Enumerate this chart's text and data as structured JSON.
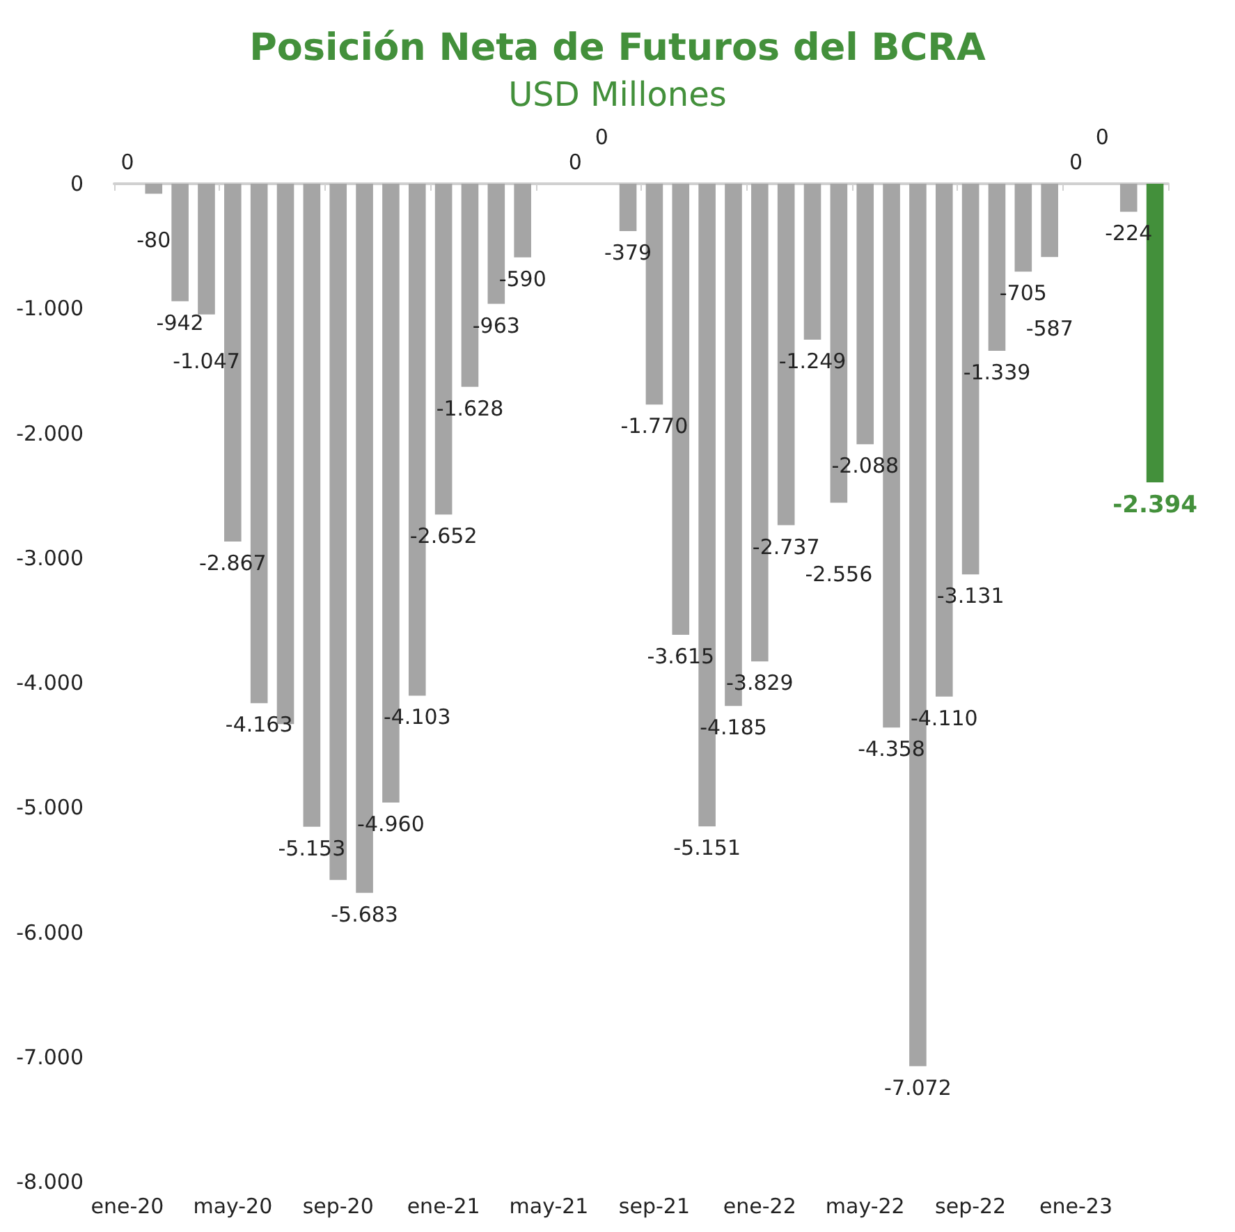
{
  "chart_data": {
    "type": "bar",
    "title": "Posición Neta de Futuros del BCRA",
    "subtitle": "USD Millones",
    "categories": [
      "ene-20",
      null,
      null,
      null,
      "may-20",
      null,
      null,
      null,
      "sep-20",
      null,
      null,
      null,
      "ene-21",
      null,
      null,
      null,
      "may-21",
      null,
      null,
      null,
      "sep-21",
      null,
      null,
      null,
      "ene-22",
      null,
      null,
      null,
      "may-22",
      null,
      null,
      null,
      "sep-22",
      null,
      null,
      null,
      "ene-23",
      null,
      null,
      null
    ],
    "values": [
      0,
      -80,
      -942,
      -1047,
      -2867,
      -4163,
      -4330,
      -5153,
      -5580,
      -5683,
      -4960,
      -4103,
      -2652,
      -1628,
      -963,
      -590,
      null,
      0,
      0,
      -379,
      -1770,
      -3615,
      -5151,
      -4185,
      -3829,
      -2737,
      -1249,
      -2556,
      -2088,
      -4358,
      -7072,
      -4110,
      -3131,
      -1339,
      -705,
      -587,
      0,
      0,
      -224,
      -2394
    ],
    "value_labels": [
      "0",
      "-80",
      "-942",
      "-1.047",
      "-2.867",
      "-4.163",
      null,
      "-5.153",
      null,
      "-5.683",
      "-4.960",
      "-4.103",
      "-2.652",
      "-1.628",
      "-963",
      "-590",
      null,
      "0",
      "0",
      "-379",
      "-1.770",
      "-3.615",
      "-5.151",
      "-4.185",
      "-3.829",
      "-2.737",
      "-1.249",
      "-2.556",
      "-2.088",
      "-4.358",
      "-7.072",
      "-4.110",
      "-3.131",
      "-1.339",
      "-705",
      "-587",
      "0",
      "0",
      "-224",
      "-2.394"
    ],
    "color": "#a5a5a5",
    "colors": [
      "#a5a5a5",
      "#a5a5a5",
      "#a5a5a5",
      "#a5a5a5",
      "#a5a5a5",
      "#a5a5a5",
      "#a5a5a5",
      "#a5a5a5",
      "#a5a5a5",
      "#a5a5a5",
      "#a5a5a5",
      "#a5a5a5",
      "#a5a5a5",
      "#a5a5a5",
      "#a5a5a5",
      "#a5a5a5",
      "#a5a5a5",
      "#a5a5a5",
      "#a5a5a5",
      "#a5a5a5",
      "#a5a5a5",
      "#a5a5a5",
      "#a5a5a5",
      "#a5a5a5",
      "#a5a5a5",
      "#a5a5a5",
      "#a5a5a5",
      "#a5a5a5",
      "#a5a5a5",
      "#a5a5a5",
      "#a5a5a5",
      "#a5a5a5",
      "#a5a5a5",
      "#a5a5a5",
      "#a5a5a5",
      "#a5a5a5",
      "#a5a5a5",
      "#a5a5a5",
      "#a5a5a5",
      "#43903b"
    ],
    "ylim": [
      -8000,
      0
    ],
    "yticks": [
      {
        "value": -8000,
        "label": "-8.000"
      },
      {
        "value": -7000,
        "label": "-7.000"
      },
      {
        "value": -6000,
        "label": "-6.000"
      },
      {
        "value": -5000,
        "label": "-5.000"
      },
      {
        "value": -4000,
        "label": "-4.000"
      },
      {
        "value": -3000,
        "label": "-3.000"
      },
      {
        "value": -2000,
        "label": "-2.000"
      },
      {
        "value": -1000,
        "label": "-1.000"
      },
      {
        "value": 0,
        "label": "0"
      }
    ],
    "grid": false
  }
}
